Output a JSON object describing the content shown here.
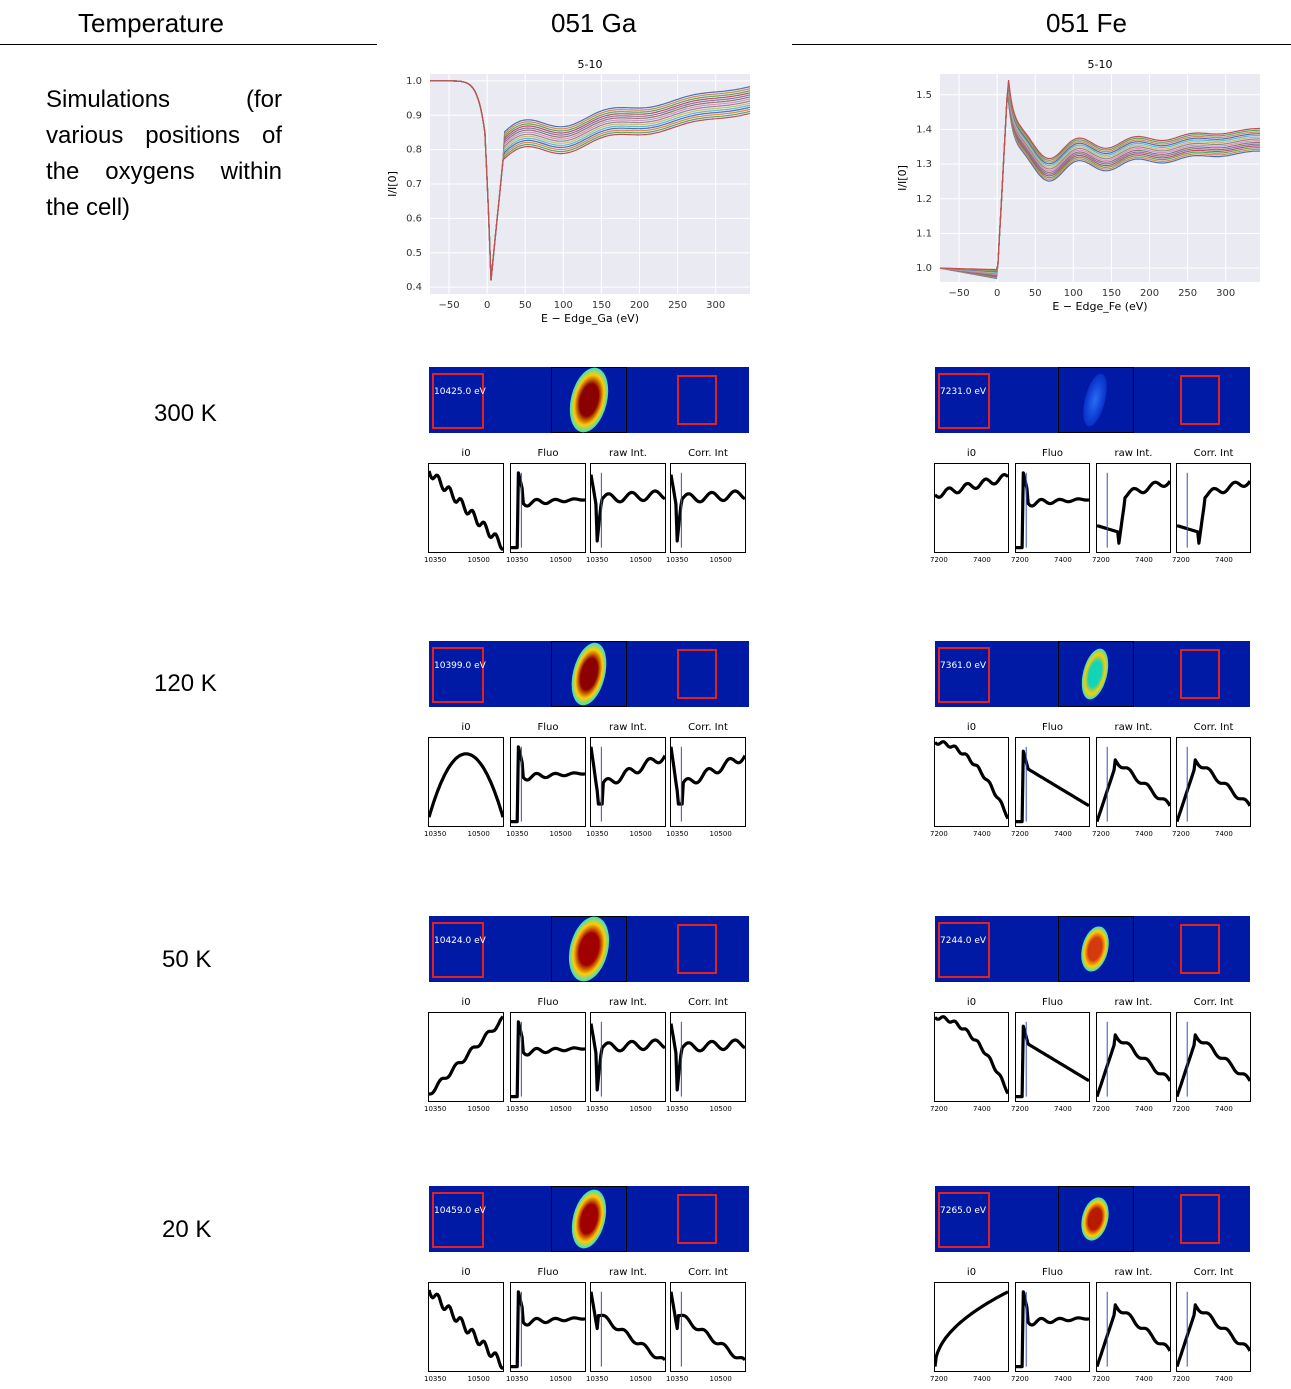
{
  "header": {
    "col1": "Temperature",
    "col2": "051 Ga",
    "col3": "051 Fe"
  },
  "simulation_label": "Simulations (for various positions of the oxygens within the cell)",
  "sim_ga": {
    "title": "5-10",
    "ylabel": "I/I[0]",
    "xlabel": "E − Edge_Ga (eV)",
    "xticks": [
      "−50",
      "0",
      "50",
      "100",
      "150",
      "200",
      "250",
      "300"
    ],
    "yticks": [
      "0.4",
      "0.5",
      "0.6",
      "0.7",
      "0.8",
      "0.9",
      "1.0"
    ]
  },
  "sim_fe": {
    "title": "5-10",
    "ylabel": "I/I[0]",
    "xlabel": "E − Edge_Fe (eV)",
    "xticks": [
      "−50",
      "0",
      "50",
      "100",
      "150",
      "200",
      "250",
      "300"
    ],
    "yticks": [
      "1.0",
      "1.1",
      "1.2",
      "1.3",
      "1.4",
      "1.5"
    ]
  },
  "panel_titles": [
    "i0",
    "Fluo",
    "raw Int.",
    "Corr. Int"
  ],
  "ga_ticks": [
    "10350",
    "10500"
  ],
  "fe_ticks": [
    "7200",
    "7400"
  ],
  "rows": [
    {
      "temp": "300 K",
      "ga_energy": "10425.0 eV",
      "fe_energy": "7231.0 eV"
    },
    {
      "temp": "120 K",
      "ga_energy": "10399.0 eV",
      "fe_energy": "7361.0 eV"
    },
    {
      "temp": "50 K",
      "ga_energy": "10424.0 eV",
      "fe_energy": "7244.0 eV"
    },
    {
      "temp": "20 K",
      "ga_energy": "10459.0 eV",
      "fe_energy": "7265.0 eV"
    }
  ],
  "colors": {
    "detector_bg": "#001aa6",
    "roi": "#e1231f",
    "sim_bg": "#eaeaf2"
  }
}
